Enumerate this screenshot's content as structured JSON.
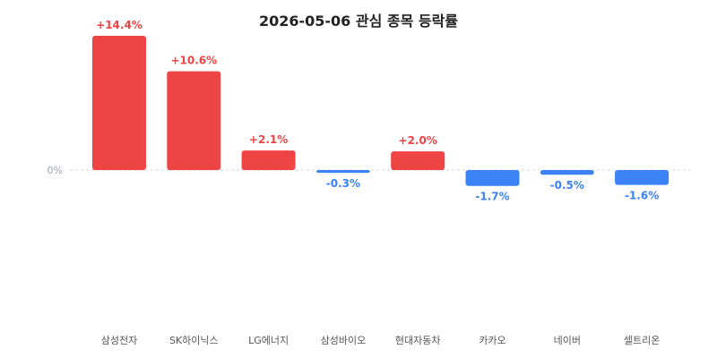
{
  "colors": {
    "positive": "#ef4444",
    "negative": "#3b82f6",
    "zero_line": "#d1d5db"
  },
  "chart_data": {
    "type": "bar",
    "title": "2026-05-06 관심 종목 등락률",
    "categories": [
      "삼성전자",
      "SK하이닉스",
      "LG에너지",
      "삼성바이오",
      "현대자동차",
      "카카오",
      "네이버",
      "셀트리온"
    ],
    "values": [
      14.4,
      10.6,
      2.1,
      -0.3,
      2.0,
      -1.7,
      -0.5,
      -1.6
    ],
    "data_labels": [
      "+14.4%",
      "+10.6%",
      "+2.1%",
      "-0.3%",
      "+2.0%",
      "-1.7%",
      "-0.5%",
      "-1.6%"
    ],
    "y_tick_label": "0%",
    "xlabel": "",
    "ylabel": "",
    "grid": false,
    "zero_line": "dashed"
  }
}
